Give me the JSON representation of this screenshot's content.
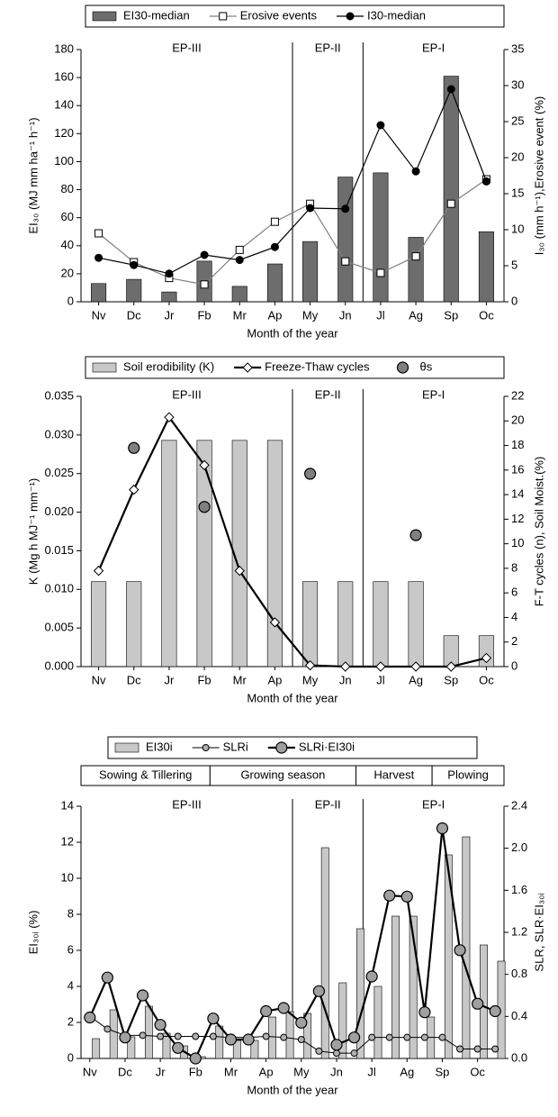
{
  "chart_data": [
    {
      "type": "bar",
      "categories": [
        "Nv",
        "Dc",
        "Jr",
        "Fb",
        "Mr",
        "Ap",
        "My",
        "Jn",
        "Jl",
        "Ag",
        "Sp",
        "Oc"
      ],
      "series": [
        {
          "name": "EI30-median",
          "type": "bar",
          "color": "#6d6d6d",
          "values": [
            13,
            16,
            7,
            29,
            11,
            27,
            43,
            89,
            92,
            46,
            161,
            50
          ]
        },
        {
          "name": "Erosive events",
          "type": "line",
          "axis": "y2",
          "color": "#808080",
          "marker": "square-open",
          "values": [
            9.5,
            5.5,
            3.3,
            2.4,
            7.2,
            11.1,
            13.6,
            5.6,
            4.0,
            6.3,
            13.6,
            17.0
          ]
        },
        {
          "name": "I30-median",
          "type": "line",
          "axis": "y2",
          "color": "#000000",
          "marker": "circle-filled",
          "values": [
            6.1,
            5.1,
            3.9,
            6.5,
            5.8,
            7.6,
            13.0,
            12.9,
            24.5,
            18.1,
            29.5,
            16.7
          ]
        }
      ],
      "ylim": [
        0,
        180
      ],
      "yticks": [
        0,
        20,
        40,
        60,
        80,
        100,
        120,
        140,
        160,
        180
      ],
      "y2lim": [
        0,
        35
      ],
      "y2ticks": [
        0,
        5,
        10,
        15,
        20,
        25,
        30,
        35
      ],
      "xlabel": "Month of the year",
      "ylabel": "EI₃₀ (MJ mm ha⁻¹ h⁻¹)",
      "y2label": "I₃₀ (mm h⁻¹),Erosive event (%)",
      "annotations": [
        "EP-III",
        "EP-II",
        "EP-I"
      ]
    },
    {
      "type": "bar",
      "categories": [
        "Nv",
        "Dc",
        "Jr",
        "Fb",
        "Mr",
        "Ap",
        "My",
        "Jn",
        "Jl",
        "Ag",
        "Sp",
        "Oc"
      ],
      "series": [
        {
          "name": "Soil erodibility (K)",
          "type": "bar",
          "color": "#c8c8c8",
          "values": [
            0.011,
            0.011,
            0.0293,
            0.0293,
            0.0293,
            0.0293,
            0.011,
            0.011,
            0.011,
            0.011,
            0.004,
            0.004
          ]
        },
        {
          "name": "Freeze-Thaw cycles",
          "type": "line",
          "axis": "y2",
          "color": "#000000",
          "marker": "diamond-open",
          "width": 2.2,
          "values": [
            7.8,
            14.4,
            20.3,
            16.4,
            7.8,
            3.6,
            0.1,
            0,
            0,
            0,
            0,
            0.7
          ]
        },
        {
          "name": "θs",
          "type": "scatter",
          "axis": "y2",
          "color": "#808080",
          "marker": "circle-big",
          "values": [
            null,
            17.8,
            null,
            13.0,
            null,
            null,
            15.7,
            null,
            null,
            10.7,
            null,
            null
          ]
        }
      ],
      "ylim": [
        0,
        0.035
      ],
      "yticks": [
        {
          "value": 0,
          "label": "0.000"
        },
        {
          "value": 0.005,
          "label": "0.005"
        },
        {
          "value": 0.01,
          "label": "0.010"
        },
        {
          "value": 0.015,
          "label": "0.015"
        },
        {
          "value": 0.02,
          "label": "0.020"
        },
        {
          "value": 0.025,
          "label": "0.025"
        },
        {
          "value": 0.03,
          "label": "0.030"
        },
        {
          "value": 0.035,
          "label": "0.035"
        }
      ],
      "y2lim": [
        0,
        22
      ],
      "y2ticks": [
        0,
        2,
        4,
        6,
        8,
        10,
        12,
        14,
        16,
        18,
        20,
        22
      ],
      "xlabel": "Month of the year",
      "ylabel": "K (Mg h MJ⁻¹ mm⁻¹)",
      "y2label": "F-T cycles (n), Soil Moist.(%)",
      "annotations": [
        "EP-III",
        "EP-II",
        "EP-I"
      ]
    },
    {
      "type": "bar",
      "categories": [
        "Nv",
        null,
        "Dc",
        null,
        "Jr",
        null,
        "Fb",
        null,
        "Mr",
        null,
        "Ap",
        null,
        "My",
        null,
        "Jn",
        null,
        "Jl",
        null,
        "Ag",
        null,
        "Sp",
        null,
        "Oc",
        null
      ],
      "series": [
        {
          "name": "EI30i",
          "type": "bar",
          "color": "#c8c8c8",
          "values": [
            1.1,
            2.7,
            1.2,
            2.9,
            1.4,
            0.7,
            0.1,
            1.8,
            1.0,
            1.0,
            2.3,
            2.6,
            2.5,
            11.7,
            4.2,
            7.2,
            4.0,
            7.9,
            7.9,
            2.3,
            11.3,
            12.3,
            6.3,
            5.4
          ]
        },
        {
          "name": "SLRi",
          "type": "line",
          "axis": "y2",
          "color": "#000000",
          "marker": "circle-small",
          "width": 1,
          "values": [
            0.4,
            0.28,
            0.22,
            0.22,
            0.21,
            0.21,
            0.21,
            0.21,
            0.2,
            0.2,
            0.21,
            0.2,
            0.18,
            0.07,
            0.05,
            0.05,
            0.2,
            0.2,
            0.2,
            0.2,
            0.2,
            0.09,
            0.09,
            0.09
          ]
        },
        {
          "name": "SLRi·EI30i",
          "type": "line",
          "axis": "y2",
          "color": "#000000",
          "marker": "circle-big",
          "width": 2.2,
          "values": [
            0.39,
            0.77,
            0.2,
            0.6,
            0.32,
            0.1,
            0.0,
            0.38,
            0.18,
            0.18,
            0.45,
            0.48,
            0.34,
            0.64,
            0.13,
            0.2,
            0.78,
            1.55,
            1.54,
            0.44,
            2.19,
            1.03,
            0.52,
            0.45
          ]
        }
      ],
      "ylim": [
        0,
        14
      ],
      "yticks": [
        0,
        2,
        4,
        6,
        8,
        10,
        12,
        14
      ],
      "y2lim": [
        0,
        2.4
      ],
      "y2ticks": [
        {
          "value": 0,
          "label": "0.0"
        },
        0.4,
        0.8,
        1.2,
        1.6,
        {
          "value": 2,
          "label": "2.0"
        },
        2.4
      ],
      "xlabel": "Month of the year",
      "ylabel": "EI₃₀ᵢ (%)",
      "y2label": "SLR, SLR·EI₃₀ᵢ",
      "annotations": [
        "EP-III",
        "EP-II",
        "EP-I"
      ],
      "phases": [
        "Sowing & Tillering",
        "Growing season",
        "Harvest",
        "Plowing"
      ]
    }
  ]
}
